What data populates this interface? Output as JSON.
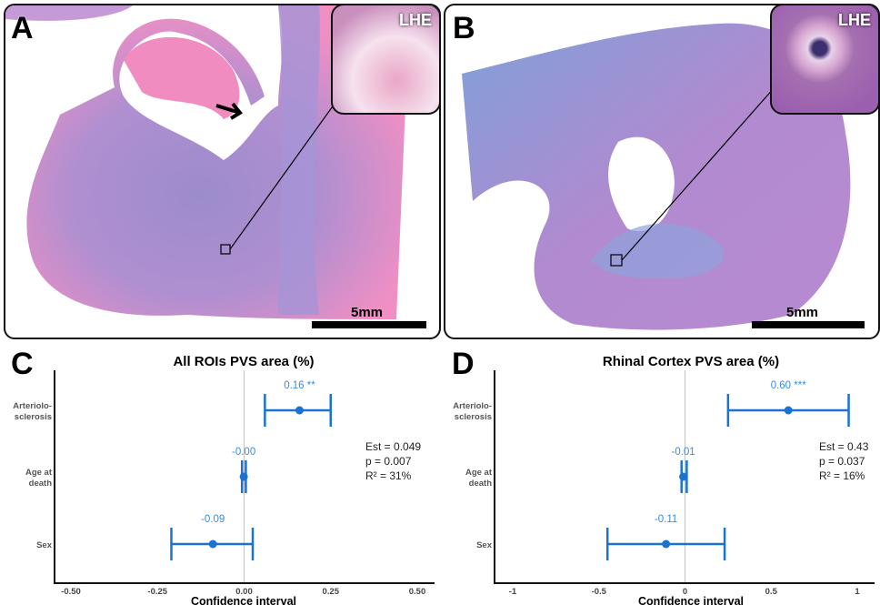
{
  "panels": {
    "A": {
      "label": "A",
      "scale_bar": "5mm",
      "inset_label": "LHE",
      "arrow": "arrow-icon"
    },
    "B": {
      "label": "B",
      "scale_bar": "5mm",
      "inset_label": "LHE"
    },
    "C": {
      "label": "C"
    },
    "D": {
      "label": "D"
    }
  },
  "colors": {
    "series": "#1a73d1",
    "text_blue": "#3a8be0",
    "zero_line": "#c8c8c8",
    "tissue_pink": "#f2a0c8",
    "tissue_purple": "#9c8ccd"
  },
  "chart_data": [
    {
      "type": "forest",
      "panel": "C",
      "title": "All ROIs PVS area (%)",
      "xlabel": "Confidence interval",
      "xlim": [
        -0.5,
        0.5
      ],
      "xticks": [
        "-0.50",
        "-0.25",
        "0.00",
        "0.25",
        "0.50"
      ],
      "xtick_values": [
        -0.5,
        -0.25,
        0,
        0.25,
        0.5
      ],
      "categories": [
        "Arteriolo-\nsclerosis",
        "Age at\ndeath",
        "Sex"
      ],
      "estimates": [
        0.16,
        -0.001,
        -0.09
      ],
      "ci_low": [
        0.06,
        -0.006,
        -0.21
      ],
      "ci_high": [
        0.25,
        0.005,
        0.025
      ],
      "labels": [
        "0.16 **",
        "-0.00",
        "-0.09"
      ],
      "stats": [
        "Est = 0.049",
        "p = 0.007",
        "R² = 31%"
      ]
    },
    {
      "type": "forest",
      "panel": "D",
      "title": "Rhinal Cortex PVS area (%)",
      "xlabel": "Confidence interval",
      "xlim": [
        -1,
        1
      ],
      "xticks": [
        "-1",
        "-0.5",
        "0",
        "0.5",
        "1"
      ],
      "xtick_values": [
        -1,
        -0.5,
        0,
        0.5,
        1
      ],
      "categories": [
        "Arteriolo-\nsclerosis",
        "Age at\ndeath",
        "Sex"
      ],
      "estimates": [
        0.6,
        -0.01,
        -0.11
      ],
      "ci_low": [
        0.25,
        -0.02,
        -0.45
      ],
      "ci_high": [
        0.95,
        0.01,
        0.23
      ],
      "labels": [
        "0.60 ***",
        "-0.01",
        "-0.11"
      ],
      "stats": [
        "Est = 0.43",
        "p = 0.037",
        "R² = 16%"
      ]
    }
  ]
}
